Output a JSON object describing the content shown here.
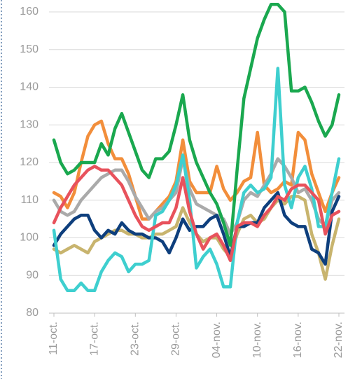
{
  "chart_data": {
    "type": "line",
    "categories": [
      "11-oct.",
      null,
      null,
      null,
      null,
      null,
      "17-oct.",
      null,
      null,
      null,
      null,
      null,
      "23-oct.",
      null,
      null,
      null,
      null,
      null,
      "29-oct.",
      null,
      null,
      null,
      null,
      null,
      "04-nov.",
      null,
      null,
      null,
      null,
      null,
      "10-nov.",
      null,
      null,
      null,
      null,
      null,
      "16-nov.",
      null,
      null,
      null,
      null,
      null,
      "22-nov."
    ],
    "series": [
      {
        "color": "#f28e3b",
        "values": [
          112,
          111,
          108,
          112,
          120,
          127,
          130,
          131,
          125,
          121,
          121,
          117,
          111,
          105,
          105,
          107,
          109,
          111,
          115,
          126,
          115,
          112,
          112,
          112,
          119,
          113,
          110,
          112,
          115,
          116,
          128,
          114,
          112,
          113,
          115,
          114,
          128,
          126,
          117,
          112,
          107,
          112,
          116
        ]
      },
      {
        "color": "#aaaaaa",
        "values": [
          110,
          107,
          106,
          107,
          110,
          112,
          114,
          116,
          117,
          118,
          118,
          115,
          111,
          108,
          105,
          107,
          108,
          110,
          112,
          121,
          113,
          109,
          108,
          107,
          106,
          105,
          101,
          104,
          110,
          112,
          111,
          114,
          117,
          121,
          119,
          116,
          112,
          113,
          110,
          105,
          103,
          110,
          112
        ]
      },
      {
        "color": "#c8b46e",
        "values": [
          97,
          96,
          97,
          98,
          97,
          96,
          99,
          100,
          101,
          102,
          102,
          101,
          101,
          100,
          100,
          101,
          101,
          102,
          103,
          108,
          104,
          101,
          99,
          100,
          100,
          97,
          95,
          101,
          105,
          106,
          104,
          105,
          108,
          110,
          109,
          111,
          111,
          110,
          101,
          96,
          89,
          98,
          105
        ]
      },
      {
        "color": "#0e3f7d",
        "values": [
          98,
          101,
          103,
          105,
          106,
          106,
          102,
          100,
          102,
          101,
          104,
          102,
          101,
          101,
          100,
          100,
          99,
          96,
          100,
          105,
          102,
          103,
          103,
          105,
          106,
          101,
          95,
          103,
          103,
          104,
          104,
          108,
          110,
          112,
          106,
          104,
          103,
          103,
          97,
          96,
          93,
          107,
          111
        ]
      },
      {
        "color": "#3ecfcf",
        "values": [
          102,
          89,
          86,
          86,
          88,
          86,
          86,
          91,
          94,
          96,
          95,
          91,
          93,
          93,
          94,
          106,
          107,
          110,
          114,
          122,
          110,
          92,
          95,
          97,
          93,
          87,
          87,
          104,
          112,
          114,
          112,
          113,
          116,
          145,
          114,
          108,
          116,
          119,
          113,
          103,
          103,
          112,
          121
        ]
      },
      {
        "color": "#e8525c",
        "values": [
          104,
          108,
          111,
          114,
          116,
          118,
          119,
          118,
          118,
          116,
          114,
          110,
          106,
          103,
          102,
          103,
          104,
          104,
          108,
          116,
          107,
          101,
          97,
          100,
          101,
          98,
          94,
          103,
          104,
          104,
          103,
          106,
          108,
          111,
          110,
          113,
          114,
          114,
          112,
          110,
          101,
          106,
          107
        ]
      },
      {
        "color": "#1aa84f",
        "values": [
          126,
          120,
          117,
          118,
          120,
          120,
          120,
          125,
          122,
          129,
          133,
          128,
          123,
          118,
          116,
          121,
          121,
          123,
          130,
          138,
          126,
          120,
          116,
          112,
          109,
          104,
          98,
          118,
          137,
          145,
          153,
          158,
          162,
          162,
          160,
          139,
          139,
          140,
          136,
          131,
          127,
          130,
          138
        ]
      }
    ],
    "ylim": [
      80,
      160
    ],
    "yticks": [
      80,
      90,
      100,
      110,
      120,
      130,
      140,
      150,
      160
    ],
    "grid": true
  }
}
